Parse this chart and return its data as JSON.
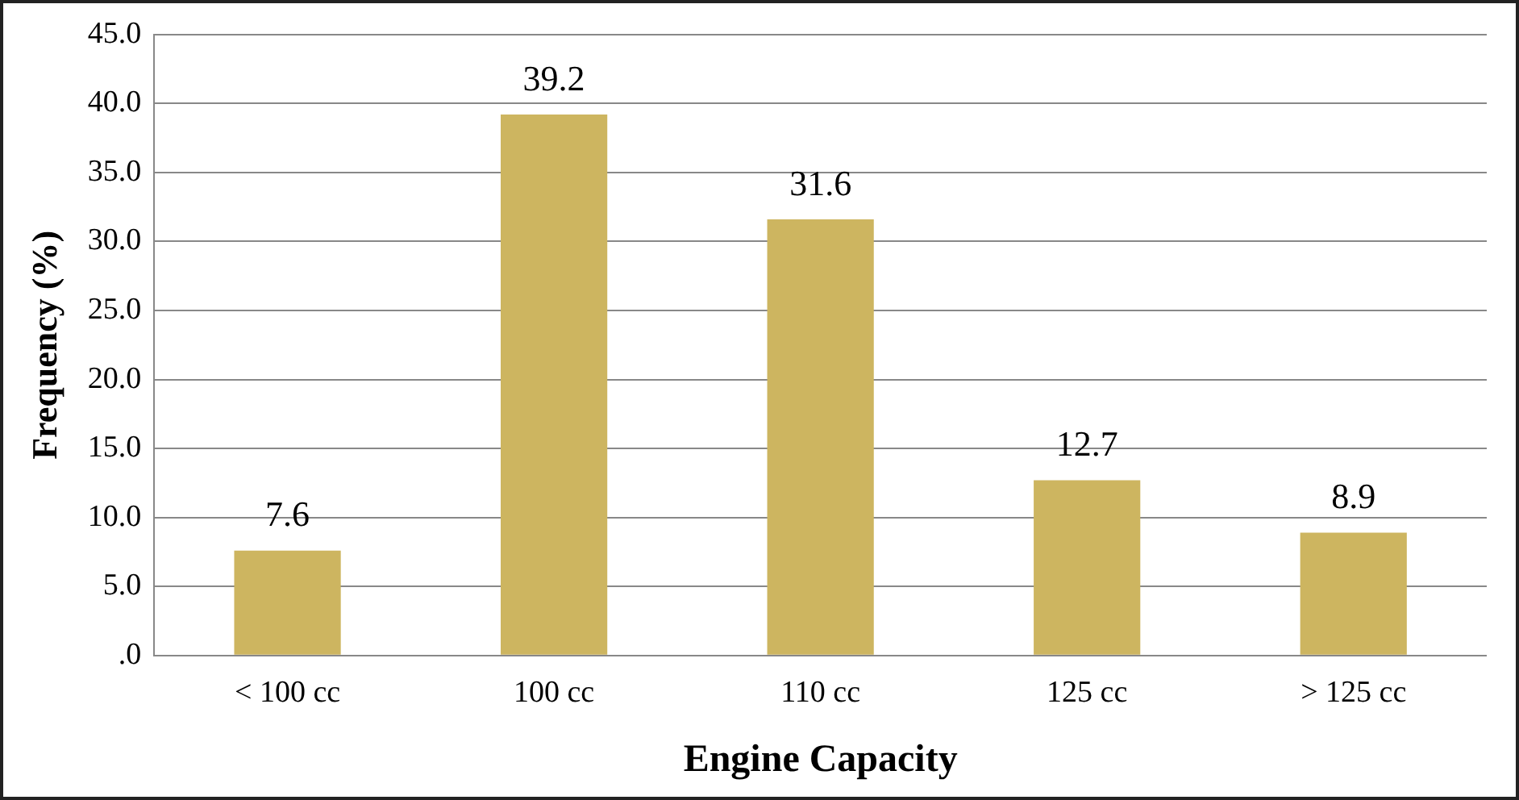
{
  "chart_data": {
    "type": "bar",
    "xlabel": "Engine Capacity",
    "ylabel": "Frequency (%)",
    "categories": [
      "< 100 cc",
      "100 cc",
      "110 cc",
      "125 cc",
      "> 125 cc"
    ],
    "values": [
      7.6,
      39.2,
      31.6,
      12.7,
      8.9
    ],
    "color": "#cdb560",
    "ylim": [
      0,
      45
    ],
    "yticks": [
      {
        "value": 0,
        "label": ".0"
      },
      {
        "value": 5,
        "label": "5.0"
      },
      {
        "value": 10,
        "label": "10.0"
      },
      {
        "value": 15,
        "label": "15.0"
      },
      {
        "value": 20,
        "label": "20.0"
      },
      {
        "value": 25,
        "label": "25.0"
      },
      {
        "value": 30,
        "label": "30.0"
      },
      {
        "value": 35,
        "label": "35.0"
      },
      {
        "value": 40,
        "label": "40.0"
      },
      {
        "value": 45,
        "label": "45.0"
      }
    ],
    "grid": "y",
    "legend": false,
    "data_labels": true
  }
}
